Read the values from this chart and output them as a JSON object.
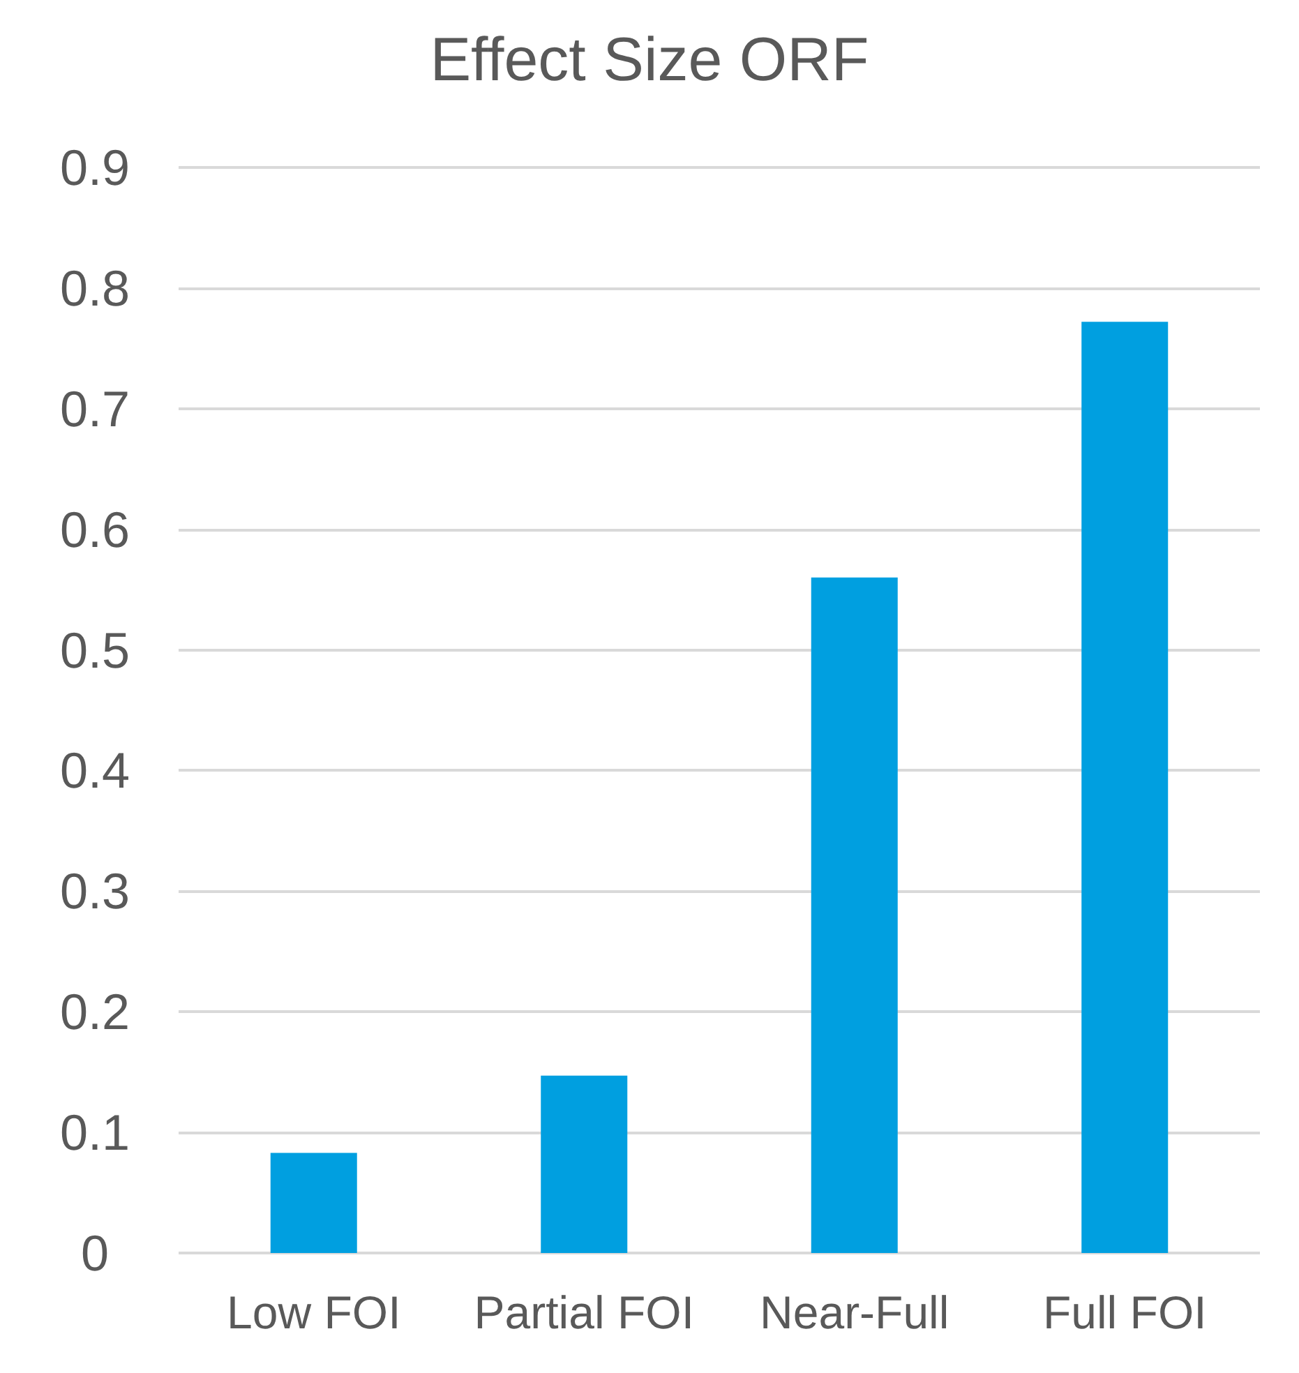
{
  "chart_data": {
    "type": "bar",
    "title": "Effect Size ORF",
    "categories": [
      "Low FOI",
      "Partial FOI",
      "Near-Full",
      "Full FOI"
    ],
    "values": [
      0.083,
      0.147,
      0.56,
      0.772
    ],
    "color": "#009fe0",
    "ylim": [
      0,
      0.9
    ],
    "yticks": [
      0,
      0.1,
      0.2,
      0.3,
      0.4,
      0.5,
      0.6,
      0.7,
      0.8,
      0.9
    ],
    "grid": "y"
  }
}
